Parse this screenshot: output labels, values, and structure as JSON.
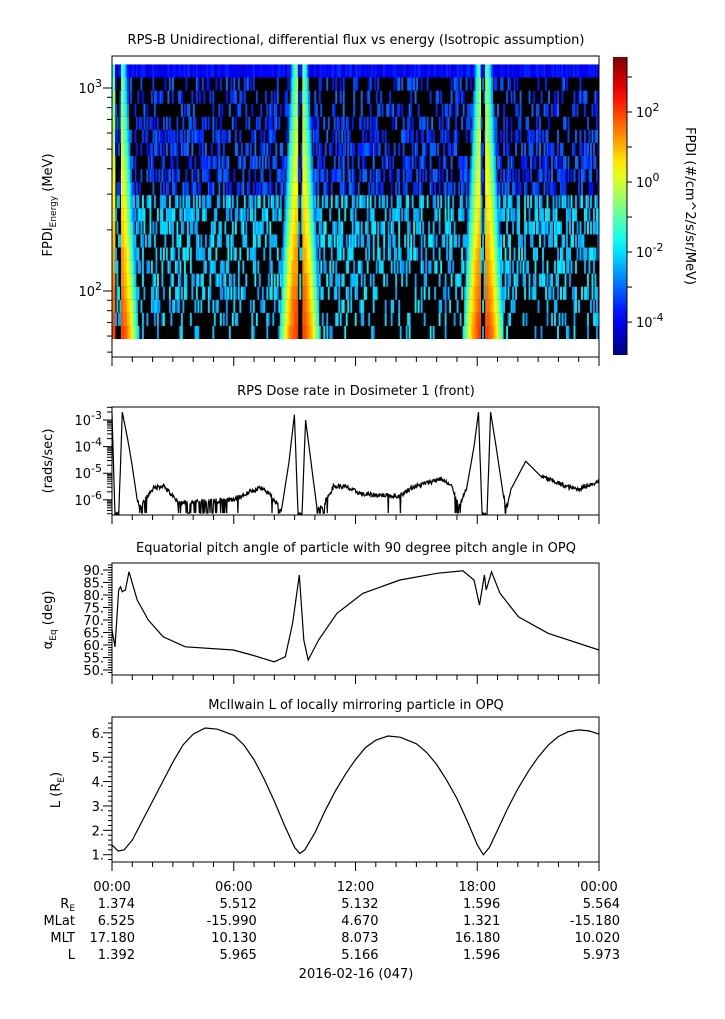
{
  "chart_data": [
    {
      "type": "heatmap",
      "title": "RPS-B  Unidirectional, differential flux vs energy (Isotropic assumption)",
      "ylabel_main": "FPDI",
      "ylabel_sub": "Energy",
      "ylabel_unit": " (MeV)",
      "yscale": "log",
      "ylim": [
        50,
        1450
      ],
      "energy_range_mev": [
        58,
        1306
      ],
      "energy_bins": 21,
      "yticks": [
        {
          "base": "10",
          "exp": "2",
          "value": 100
        },
        {
          "base": "10",
          "exp": "3",
          "value": 1000
        }
      ],
      "xlim_hours": [
        0,
        24
      ],
      "radiation_belt_passes_hours": [
        0.3,
        9.25,
        18.3
      ],
      "colorbar": {
        "label": "FPDI (#/cm^2/s/sr/MeV)",
        "scale": "log",
        "range_log10": [
          -4.94,
          3.57
        ],
        "colormap": "jet",
        "ticks": [
          {
            "base": "10",
            "exp": "2",
            "value": 2
          },
          {
            "base": "10",
            "exp": "0",
            "value": 0
          },
          {
            "base": "10",
            "exp": "-2",
            "value": -2
          },
          {
            "base": "10",
            "exp": "-4",
            "value": -4
          }
        ]
      }
    },
    {
      "type": "line",
      "title": "RPS  Dose rate in Dosimeter 1 (front)",
      "ylabel": "(rads/sec)",
      "yscale": "log",
      "ylim_log10": [
        -6.57,
        -2.51
      ],
      "yticks": [
        {
          "base": "10",
          "exp": "-3",
          "value": -3
        },
        {
          "base": "10",
          "exp": "-4",
          "value": -4
        },
        {
          "base": "10",
          "exp": "-5",
          "value": -5
        },
        {
          "base": "10",
          "exp": "-6",
          "value": -6
        }
      ],
      "x_hours": [
        0,
        0.15,
        0.33,
        0.51,
        0.78,
        0.97,
        1.24,
        1.42,
        1.97,
        2.52,
        3.25,
        5.98,
        7.26,
        7.81,
        8.35,
        8.72,
        8.99,
        9.17,
        9.36,
        9.54,
        9.81,
        10.09,
        10.36,
        10.91,
        11.45,
        12.37,
        14.19,
        14.74,
        16.2,
        16.74,
        17.11,
        17.47,
        17.84,
        18.06,
        18.24,
        18.48,
        18.66,
        18.93,
        19.3,
        19.48,
        19.66,
        20.39,
        21.12,
        22.4,
        22.95,
        24
      ],
      "y_log10": [
        -2.75,
        -6.6,
        -6.6,
        -2.7,
        -3.75,
        -4.6,
        -6.0,
        -6.25,
        -5.6,
        -5.45,
        -6.1,
        -6.0,
        -5.55,
        -5.8,
        -6.4,
        -4.6,
        -2.8,
        -6.6,
        -6.6,
        -3.0,
        -4.6,
        -6.25,
        -6.3,
        -5.5,
        -5.5,
        -5.8,
        -5.85,
        -5.55,
        -5.2,
        -5.5,
        -6.25,
        -5.6,
        -4.0,
        -2.7,
        -6.6,
        -6.6,
        -2.7,
        -4.0,
        -5.9,
        -6.25,
        -5.6,
        -4.55,
        -5.1,
        -5.5,
        -5.6,
        -5.3
      ]
    },
    {
      "type": "line",
      "title": "Equatorial pitch angle of particle with 90 degree pitch angle in OPQ",
      "ylabel_main": "α",
      "ylabel_sub": "Eq",
      "ylabel_unit": " (deg)",
      "ylim": [
        48,
        92.8
      ],
      "yticks": [
        "90.",
        "85.",
        "80.",
        "75.",
        "70.",
        "65.",
        "60.",
        "55.",
        "50."
      ],
      "ytick_values": [
        90,
        85,
        80,
        75,
        70,
        65,
        60,
        55,
        50
      ],
      "x_hours": [
        0,
        0.15,
        0.33,
        0.42,
        0.51,
        0.66,
        0.84,
        1.24,
        1.79,
        2.52,
        3.61,
        5.98,
        6.89,
        7.99,
        8.54,
        8.9,
        9.23,
        9.45,
        9.67,
        10.18,
        11.09,
        12.37,
        14.19,
        16.02,
        17.29,
        17.84,
        18.11,
        18.35,
        18.44,
        18.7,
        19.12,
        20.03,
        21.49,
        24
      ],
      "y": [
        66,
        59.3,
        82,
        83.3,
        81.3,
        82,
        89.3,
        78,
        70,
        63.3,
        59.3,
        58,
        56,
        53.3,
        55.3,
        68.7,
        88,
        62,
        54,
        62,
        72.7,
        80.7,
        86,
        88.7,
        89.7,
        86,
        76,
        88,
        82,
        89.3,
        80.7,
        71.3,
        64.7,
        58
      ]
    },
    {
      "type": "line",
      "title": "McIlwain L of locally mirroring particle in OPQ",
      "ylabel_main": "L (R",
      "ylabel_sub": "E",
      "ylabel_unit": ")",
      "ylim": [
        0.7,
        6.65
      ],
      "yticks": [
        "1.",
        "2.",
        "3.",
        "4.",
        "5.",
        "6."
      ],
      "ytick_values": [
        1,
        2,
        3,
        4,
        5,
        6
      ],
      "x_hours": [
        0,
        0.3,
        0.6,
        1,
        1.5,
        2,
        2.5,
        3,
        3.5,
        4,
        4.6,
        5.2,
        6,
        6.5,
        7,
        7.5,
        8,
        8.5,
        9,
        9.26,
        9.5,
        10,
        10.5,
        11,
        11.5,
        12,
        12.5,
        13,
        13.6,
        14.2,
        15,
        15.5,
        16,
        16.5,
        17,
        17.5,
        18,
        18.3,
        18.6,
        19,
        19.5,
        20,
        20.5,
        21,
        21.5,
        22,
        22.5,
        23,
        23.5,
        24
      ],
      "y": [
        1.4,
        1.15,
        1.2,
        1.6,
        2.4,
        3.2,
        4.0,
        4.8,
        5.5,
        5.95,
        6.2,
        6.15,
        5.9,
        5.5,
        4.9,
        4.1,
        3.2,
        2.2,
        1.3,
        1.05,
        1.2,
        1.9,
        2.8,
        3.6,
        4.3,
        4.9,
        5.4,
        5.7,
        5.87,
        5.82,
        5.55,
        5.2,
        4.7,
        4.05,
        3.3,
        2.4,
        1.4,
        1.0,
        1.3,
        2.0,
        2.9,
        3.7,
        4.4,
        5.0,
        5.5,
        5.85,
        6.05,
        6.12,
        6.08,
        5.95
      ]
    }
  ],
  "footer": {
    "time_labels": [
      "00:00",
      "06:00",
      "12:00",
      "18:00",
      "00:00"
    ],
    "rows": [
      {
        "label_main": "R",
        "label_sub": "E",
        "values": [
          "1.374",
          "5.512",
          "5.132",
          "1.596",
          "5.564"
        ]
      },
      {
        "label_main": "MLat",
        "label_sub": "",
        "values": [
          "6.525",
          "-15.990",
          "4.670",
          "1.321",
          "-15.180"
        ]
      },
      {
        "label_main": "MLT",
        "label_sub": "",
        "values": [
          "17.180",
          "10.130",
          "8.073",
          "16.180",
          "10.020"
        ]
      },
      {
        "label_main": "L",
        "label_sub": "",
        "values": [
          "1.392",
          "5.965",
          "5.166",
          "1.596",
          "5.973"
        ]
      }
    ],
    "date": "2016-02-16 (047)"
  }
}
